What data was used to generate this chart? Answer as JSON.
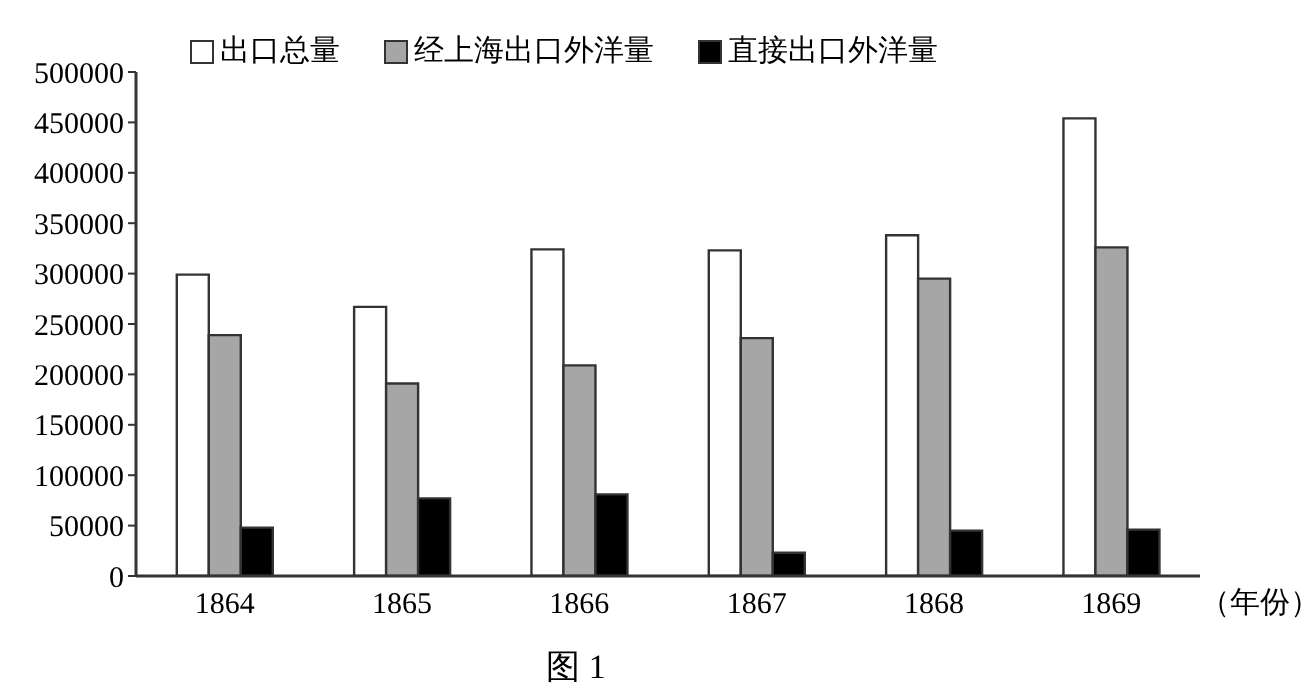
{
  "chart_data": {
    "type": "bar",
    "categories": [
      "1864",
      "1865",
      "1866",
      "1867",
      "1868",
      "1869"
    ],
    "series": [
      {
        "name": "出口总量",
        "color": "#ffffff",
        "values": [
          299000,
          267000,
          324000,
          323000,
          338000,
          454000
        ]
      },
      {
        "name": "经上海出口外洋量",
        "color": "#a6a6a6",
        "values": [
          239000,
          191000,
          209000,
          236000,
          295000,
          326000
        ]
      },
      {
        "name": "直接出口外洋量",
        "color": "#000000",
        "values": [
          48000,
          77000,
          81000,
          23000,
          45000,
          46000
        ]
      }
    ],
    "xlabel": "（年份）",
    "ylim": [
      0,
      500000
    ],
    "yticks": [
      0,
      50000,
      100000,
      150000,
      200000,
      250000,
      300000,
      350000,
      400000,
      450000,
      500000
    ],
    "legend": "top left",
    "grid": false,
    "annotations": [
      "图 1"
    ]
  }
}
